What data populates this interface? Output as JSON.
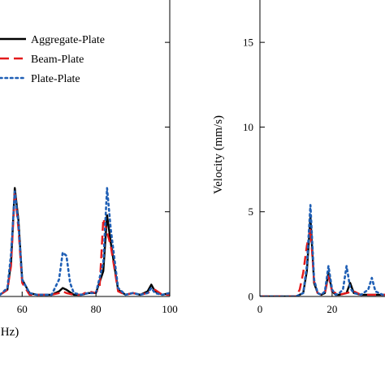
{
  "chart_data": [
    {
      "type": "line",
      "xlabel": "Hz)",
      "ylabel": "",
      "xlim": [
        54,
        100
      ],
      "ylim": [
        0,
        17.5
      ],
      "xticks": [
        60,
        80,
        100
      ],
      "yticks": [
        5,
        10,
        15
      ],
      "legend": {
        "placement": "top-right"
      },
      "series": [
        {
          "name": "Aggregate-Plate",
          "color": "#000000",
          "style": "solid",
          "x": [
            54,
            56,
            57,
            58,
            59,
            60,
            62,
            64,
            66,
            68,
            70,
            71,
            72,
            74,
            76,
            78,
            80,
            82,
            83,
            84,
            86,
            88,
            90,
            92,
            94,
            95,
            96,
            98,
            100
          ],
          "y": [
            0.1,
            0.4,
            2.0,
            6.4,
            4.5,
            1.0,
            0.2,
            0.1,
            0.1,
            0.1,
            0.3,
            0.5,
            0.4,
            0.1,
            0.1,
            0.2,
            0.2,
            1.5,
            4.8,
            3.2,
            0.4,
            0.1,
            0.2,
            0.1,
            0.3,
            0.7,
            0.3,
            0.1,
            0.2
          ]
        },
        {
          "name": "Beam-Plate",
          "color": "#e31a1c",
          "style": "dashed",
          "x": [
            54,
            56,
            57,
            58,
            59,
            60,
            62,
            64,
            66,
            68,
            70,
            71,
            72,
            74,
            76,
            78,
            80,
            81,
            82,
            84,
            86,
            88,
            90,
            92,
            94,
            96,
            98,
            100
          ],
          "y": [
            0.1,
            0.4,
            1.8,
            6.2,
            4.0,
            0.8,
            0.1,
            0.1,
            0.1,
            0.1,
            0.2,
            0.3,
            0.2,
            0.1,
            0.1,
            0.3,
            0.2,
            0.6,
            4.6,
            3.0,
            0.3,
            0.1,
            0.2,
            0.1,
            0.2,
            0.4,
            0.1,
            0.1
          ]
        },
        {
          "name": "Plate-Plate",
          "color": "#1f5fb5",
          "style": "dotted",
          "x": [
            54,
            56,
            57,
            58,
            59,
            60,
            62,
            64,
            66,
            68,
            70,
            71,
            72,
            73,
            74,
            76,
            78,
            80,
            82,
            83,
            84,
            86,
            88,
            90,
            92,
            94,
            95,
            96,
            98,
            100
          ],
          "y": [
            0.1,
            0.5,
            2.5,
            6.2,
            4.3,
            1.0,
            0.2,
            0.1,
            0.1,
            0.1,
            1.0,
            2.6,
            2.4,
            0.8,
            0.2,
            0.1,
            0.2,
            0.2,
            2.0,
            6.4,
            4.0,
            0.5,
            0.1,
            0.2,
            0.1,
            0.2,
            0.5,
            0.2,
            0.1,
            0.2
          ]
        }
      ]
    },
    {
      "type": "line",
      "xlabel": "",
      "ylabel": "Velocity (mm/s)",
      "xlim": [
        0,
        36
      ],
      "ylim": [
        0,
        17.5
      ],
      "xticks": [
        0,
        20
      ],
      "yticks": [
        0,
        5,
        10,
        15
      ],
      "series": [
        {
          "color": "#000000",
          "style": "solid",
          "x": [
            0,
            10,
            12,
            13,
            14,
            15,
            16,
            17,
            18,
            19,
            20,
            21,
            22,
            24,
            25,
            26,
            28,
            30,
            32,
            34,
            36
          ],
          "y": [
            0,
            0,
            0.2,
            1.5,
            4.7,
            0.8,
            0.2,
            0.1,
            0.2,
            1.4,
            0.3,
            0.1,
            0.1,
            0.2,
            0.8,
            0.2,
            0.1,
            0.1,
            0.1,
            0.1,
            0.1
          ]
        },
        {
          "color": "#e31a1c",
          "style": "dashed",
          "x": [
            0,
            10,
            11,
            12,
            13,
            14,
            15,
            16,
            17,
            18,
            19,
            20,
            22,
            24,
            26,
            28,
            30,
            32,
            34,
            36
          ],
          "y": [
            0,
            0,
            0.4,
            1.4,
            3.0,
            4.0,
            0.9,
            0.2,
            0.1,
            0.2,
            1.2,
            0.3,
            0.1,
            0.2,
            0.3,
            0.1,
            0.1,
            0.1,
            0.1,
            0.1
          ]
        },
        {
          "color": "#1f5fb5",
          "style": "dotted",
          "x": [
            0,
            10,
            12,
            13,
            14,
            15,
            16,
            17,
            18,
            19,
            20,
            21,
            22,
            23,
            24,
            25,
            26,
            28,
            30,
            31,
            32,
            34,
            36
          ],
          "y": [
            0,
            0,
            0.2,
            1.8,
            5.4,
            1.0,
            0.2,
            0.1,
            0.3,
            1.8,
            0.4,
            0.1,
            0.2,
            0.4,
            1.8,
            0.5,
            0.2,
            0.1,
            0.4,
            1.1,
            0.3,
            0.1,
            0.1
          ]
        }
      ]
    }
  ]
}
